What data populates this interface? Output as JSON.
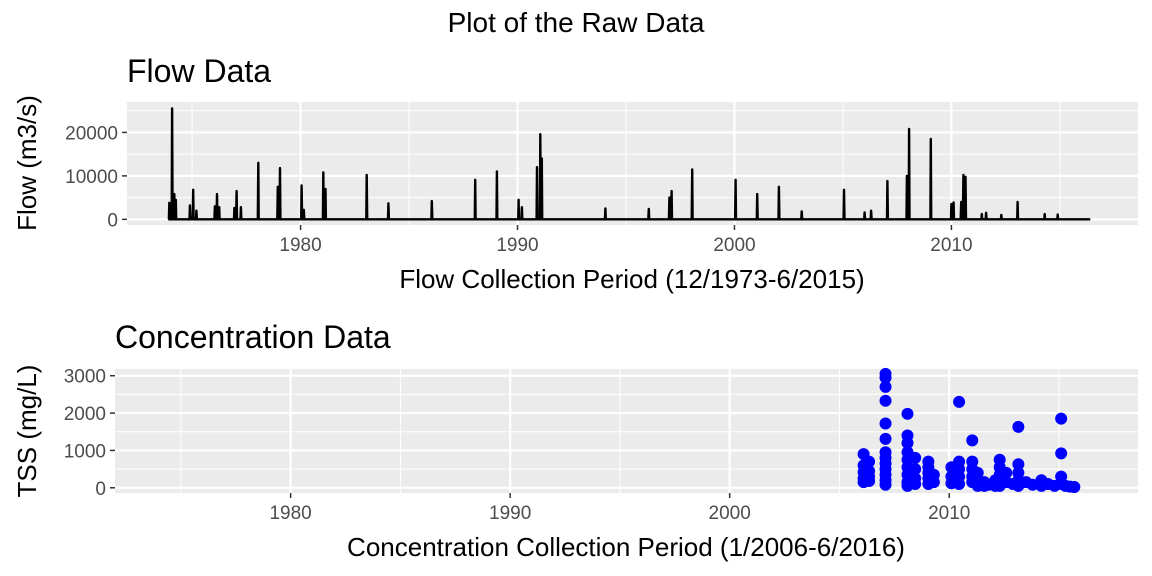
{
  "title": "Plot of the Raw Data",
  "chart_data": [
    {
      "type": "line",
      "title": "Flow Data",
      "xlabel": "Flow Collection Period (12/1973-6/2015)",
      "ylabel": "Flow (m3/s)",
      "xlim": [
        1972.0,
        2018.6
      ],
      "ylim": [
        -1300,
        27000
      ],
      "x_ticks": [
        1980,
        1990,
        2000,
        2010
      ],
      "y_ticks": [
        0,
        10000,
        20000
      ],
      "x_tick_labels": [
        "1980",
        "1990",
        "2000",
        "2010"
      ],
      "y_tick_labels": [
        "0",
        "10000",
        "20000"
      ],
      "grid": true,
      "legend": "none",
      "color": "#000000",
      "baseline": 0,
      "x_end": 2016.4,
      "series": [
        {
          "values": [
            {
              "x": 1973.95,
              "y": 3800
            },
            {
              "x": 1974.08,
              "y": 25500
            },
            {
              "x": 1974.18,
              "y": 5800
            },
            {
              "x": 1974.25,
              "y": 4500
            },
            {
              "x": 1974.9,
              "y": 3200
            },
            {
              "x": 1975.05,
              "y": 6800
            },
            {
              "x": 1975.2,
              "y": 2000
            },
            {
              "x": 1976.05,
              "y": 3000
            },
            {
              "x": 1976.15,
              "y": 5800
            },
            {
              "x": 1976.25,
              "y": 2800
            },
            {
              "x": 1976.95,
              "y": 2600
            },
            {
              "x": 1977.05,
              "y": 6500
            },
            {
              "x": 1977.25,
              "y": 2800
            },
            {
              "x": 1978.05,
              "y": 13000
            },
            {
              "x": 1978.95,
              "y": 7500
            },
            {
              "x": 1979.05,
              "y": 11800
            },
            {
              "x": 1980.05,
              "y": 7800
            },
            {
              "x": 1980.15,
              "y": 2200
            },
            {
              "x": 1981.05,
              "y": 10800
            },
            {
              "x": 1981.15,
              "y": 7000
            },
            {
              "x": 1983.05,
              "y": 10200
            },
            {
              "x": 1984.05,
              "y": 3700
            },
            {
              "x": 1986.05,
              "y": 4200
            },
            {
              "x": 1988.05,
              "y": 9100
            },
            {
              "x": 1989.05,
              "y": 11000
            },
            {
              "x": 1990.05,
              "y": 4500
            },
            {
              "x": 1990.2,
              "y": 2800
            },
            {
              "x": 1990.9,
              "y": 12000
            },
            {
              "x": 1991.05,
              "y": 19600
            },
            {
              "x": 1991.12,
              "y": 14000
            },
            {
              "x": 1994.05,
              "y": 2500
            },
            {
              "x": 1996.05,
              "y": 2400
            },
            {
              "x": 1997.0,
              "y": 5000
            },
            {
              "x": 1997.1,
              "y": 6500
            },
            {
              "x": 1998.05,
              "y": 11500
            },
            {
              "x": 2000.05,
              "y": 9100
            },
            {
              "x": 2001.05,
              "y": 5800
            },
            {
              "x": 2002.05,
              "y": 7500
            },
            {
              "x": 2003.1,
              "y": 1800
            },
            {
              "x": 2005.05,
              "y": 6800
            },
            {
              "x": 2006.0,
              "y": 1600
            },
            {
              "x": 2006.3,
              "y": 2000
            },
            {
              "x": 2007.05,
              "y": 8800
            },
            {
              "x": 2007.95,
              "y": 10000
            },
            {
              "x": 2008.05,
              "y": 20800
            },
            {
              "x": 2009.05,
              "y": 18500
            },
            {
              "x": 2010.0,
              "y": 3500
            },
            {
              "x": 2010.1,
              "y": 3900
            },
            {
              "x": 2010.45,
              "y": 4000
            },
            {
              "x": 2010.55,
              "y": 10200
            },
            {
              "x": 2010.65,
              "y": 9800
            },
            {
              "x": 2011.4,
              "y": 1200
            },
            {
              "x": 2011.6,
              "y": 1500
            },
            {
              "x": 2012.3,
              "y": 1000
            },
            {
              "x": 2013.05,
              "y": 4000
            },
            {
              "x": 2014.3,
              "y": 1200
            },
            {
              "x": 2014.9,
              "y": 1100
            }
          ]
        }
      ]
    },
    {
      "type": "scatter",
      "title": "Concentration Data",
      "xlabel": "Concentration Collection Period (1/2006-6/2016)",
      "ylabel": "TSS (mg/L)",
      "xlim": [
        1972.0,
        2018.6
      ],
      "ylim": [
        -140,
        3180
      ],
      "x_ticks": [
        1980,
        1990,
        2000,
        2010
      ],
      "y_ticks": [
        0,
        1000,
        2000,
        3000
      ],
      "x_tick_labels": [
        "1980",
        "1990",
        "2000",
        "2010"
      ],
      "y_tick_labels": [
        "0",
        "1000",
        "2000",
        "3000"
      ],
      "grid": true,
      "legend": "none",
      "color": "#0000ff",
      "series": [
        {
          "values": [
            {
              "x": 2006.1,
              "y": 900
            },
            {
              "x": 2006.1,
              "y": 600
            },
            {
              "x": 2006.1,
              "y": 420
            },
            {
              "x": 2006.1,
              "y": 250
            },
            {
              "x": 2006.1,
              "y": 150
            },
            {
              "x": 2006.35,
              "y": 700
            },
            {
              "x": 2006.35,
              "y": 450
            },
            {
              "x": 2006.35,
              "y": 300
            },
            {
              "x": 2006.35,
              "y": 180
            },
            {
              "x": 2007.1,
              "y": 3050
            },
            {
              "x": 2007.1,
              "y": 2950
            },
            {
              "x": 2007.1,
              "y": 2700
            },
            {
              "x": 2007.1,
              "y": 2330
            },
            {
              "x": 2007.1,
              "y": 1720
            },
            {
              "x": 2007.1,
              "y": 1310
            },
            {
              "x": 2007.1,
              "y": 950
            },
            {
              "x": 2007.1,
              "y": 800
            },
            {
              "x": 2007.1,
              "y": 650
            },
            {
              "x": 2007.1,
              "y": 500
            },
            {
              "x": 2007.1,
              "y": 350
            },
            {
              "x": 2007.1,
              "y": 200
            },
            {
              "x": 2007.1,
              "y": 80
            },
            {
              "x": 2008.1,
              "y": 1980
            },
            {
              "x": 2008.1,
              "y": 1400
            },
            {
              "x": 2008.1,
              "y": 1200
            },
            {
              "x": 2008.1,
              "y": 950
            },
            {
              "x": 2008.1,
              "y": 750
            },
            {
              "x": 2008.1,
              "y": 550
            },
            {
              "x": 2008.1,
              "y": 350
            },
            {
              "x": 2008.1,
              "y": 150
            },
            {
              "x": 2008.1,
              "y": 50
            },
            {
              "x": 2008.45,
              "y": 800
            },
            {
              "x": 2008.45,
              "y": 500
            },
            {
              "x": 2008.45,
              "y": 250
            },
            {
              "x": 2008.45,
              "y": 100
            },
            {
              "x": 2009.05,
              "y": 700
            },
            {
              "x": 2009.05,
              "y": 550
            },
            {
              "x": 2009.05,
              "y": 400
            },
            {
              "x": 2009.05,
              "y": 250
            },
            {
              "x": 2009.05,
              "y": 100
            },
            {
              "x": 2009.3,
              "y": 350
            },
            {
              "x": 2009.3,
              "y": 150
            },
            {
              "x": 2010.1,
              "y": 550
            },
            {
              "x": 2010.1,
              "y": 300
            },
            {
              "x": 2010.1,
              "y": 120
            },
            {
              "x": 2010.45,
              "y": 2300
            },
            {
              "x": 2010.45,
              "y": 700
            },
            {
              "x": 2010.45,
              "y": 500
            },
            {
              "x": 2010.45,
              "y": 300
            },
            {
              "x": 2010.45,
              "y": 100
            },
            {
              "x": 2011.05,
              "y": 1270
            },
            {
              "x": 2011.05,
              "y": 700
            },
            {
              "x": 2011.05,
              "y": 500
            },
            {
              "x": 2011.05,
              "y": 300
            },
            {
              "x": 2011.05,
              "y": 150
            },
            {
              "x": 2011.3,
              "y": 400
            },
            {
              "x": 2011.3,
              "y": 200
            },
            {
              "x": 2011.3,
              "y": 50
            },
            {
              "x": 2011.6,
              "y": 150
            },
            {
              "x": 2011.6,
              "y": 50
            },
            {
              "x": 2011.8,
              "y": 80
            },
            {
              "x": 2012.1,
              "y": 200
            },
            {
              "x": 2012.1,
              "y": 50
            },
            {
              "x": 2012.3,
              "y": 750
            },
            {
              "x": 2012.3,
              "y": 550
            },
            {
              "x": 2012.3,
              "y": 350
            },
            {
              "x": 2012.3,
              "y": 200
            },
            {
              "x": 2012.3,
              "y": 50
            },
            {
              "x": 2012.6,
              "y": 400
            },
            {
              "x": 2012.6,
              "y": 150
            },
            {
              "x": 2012.9,
              "y": 100
            },
            {
              "x": 2013.15,
              "y": 1630
            },
            {
              "x": 2013.15,
              "y": 630
            },
            {
              "x": 2013.15,
              "y": 400
            },
            {
              "x": 2013.15,
              "y": 200
            },
            {
              "x": 2013.15,
              "y": 50
            },
            {
              "x": 2013.5,
              "y": 150
            },
            {
              "x": 2013.8,
              "y": 80
            },
            {
              "x": 2014.2,
              "y": 200
            },
            {
              "x": 2014.2,
              "y": 50
            },
            {
              "x": 2014.5,
              "y": 100
            },
            {
              "x": 2014.8,
              "y": 50
            },
            {
              "x": 2015.1,
              "y": 1850
            },
            {
              "x": 2015.1,
              "y": 920
            },
            {
              "x": 2015.1,
              "y": 300
            },
            {
              "x": 2015.1,
              "y": 100
            },
            {
              "x": 2015.3,
              "y": 50
            },
            {
              "x": 2015.5,
              "y": 30
            },
            {
              "x": 2015.7,
              "y": 20
            }
          ]
        }
      ]
    }
  ]
}
